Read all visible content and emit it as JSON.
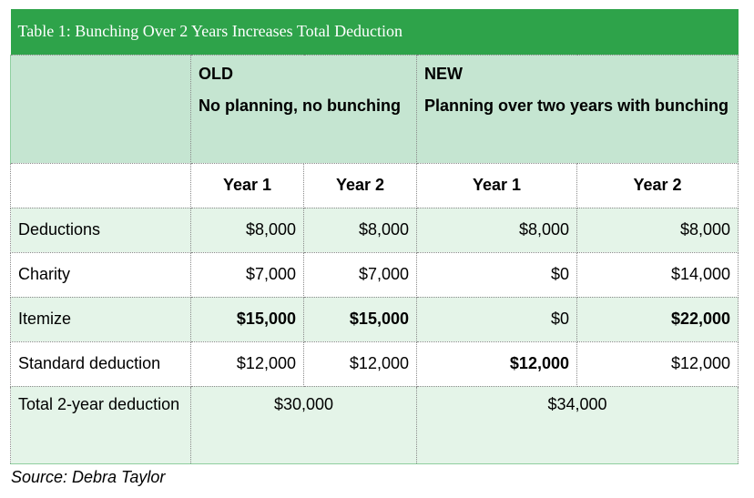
{
  "title": "Table 1: Bunching Over 2 Years Increases Total Deduction",
  "groups": {
    "old": {
      "label": "OLD",
      "desc": "No planning, no bunching"
    },
    "new": {
      "label": "NEW",
      "desc": "Planning over two years with bunching"
    }
  },
  "years": [
    "Year 1",
    "Year 2",
    "Year 1",
    "Year 2"
  ],
  "rows": [
    {
      "label": "Deductions",
      "values": [
        "$8,000",
        "$8,000",
        "$8,000",
        "$8,000"
      ]
    },
    {
      "label": "Charity",
      "values": [
        "$7,000",
        "$7,000",
        "$0",
        "$14,000"
      ]
    },
    {
      "label": "Itemize",
      "values": [
        "$15,000",
        "$15,000",
        "$0",
        "$22,000"
      ]
    },
    {
      "label": "Standard deduction",
      "values": [
        "$12,000",
        "$12,000",
        "$12,000",
        "$12,000"
      ]
    }
  ],
  "total": {
    "label": "Total 2-year deduction",
    "old": "$30,000",
    "new": "$34,000"
  },
  "source": "Source: Debra Taylor",
  "colors": {
    "header_green": "#2ea34a",
    "light_green": "#c5e5d1",
    "row_green": "#e4f4e8"
  }
}
